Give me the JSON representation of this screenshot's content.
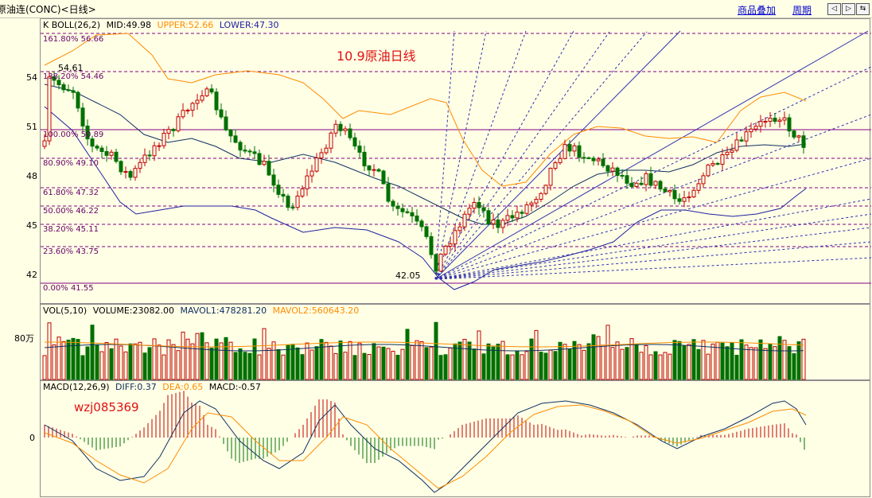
{
  "header": {
    "title": "原油连(CONC)<日线>",
    "links": {
      "overlay": "商品叠加",
      "period": "周期"
    },
    "nav": [
      "◁",
      "▷",
      "⇆"
    ]
  },
  "kline": {
    "indicator_label": "K BOLL(26,2)",
    "mid": "MID:49.98",
    "upper": "UPPER:52.66",
    "lower": "LOWER:47.30",
    "y_ticks": [
      "54",
      "51",
      "48",
      "45",
      "42"
    ],
    "annotation": "10.9原油日线",
    "price_label_high": "54.61",
    "price_label_low": "42.05",
    "fib_levels": [
      "161.80% 56.66",
      "138.20% 54.46",
      "100.00% 50.89",
      "80.90% 49.10",
      "61.80% 47.32",
      "50.00% 46.22",
      "38.20% 45.11",
      "23.60% 43.75",
      "0.00% 41.55"
    ]
  },
  "volume": {
    "label": "VOL(5,10)",
    "volume": "VOLUME:23082.00",
    "mavol1": "MAVOL1:478281.20",
    "mavol2": "MAVOL2:560643.20",
    "y_tick": "80万"
  },
  "macd": {
    "label": "MACD(12,26,9)",
    "diff": "DIFF:0.37",
    "dea": "DEA:0.65",
    "macd": "MACD:-0.57",
    "y_tick": "0",
    "annotation": "wzj085369"
  },
  "colors": {
    "up": "#c00000",
    "down": "#007000",
    "upper_band": "#ff8c00",
    "mid_band": "#103060",
    "lower_band": "#2020a0",
    "fib": "#800080",
    "fan": "#3030b0"
  }
}
